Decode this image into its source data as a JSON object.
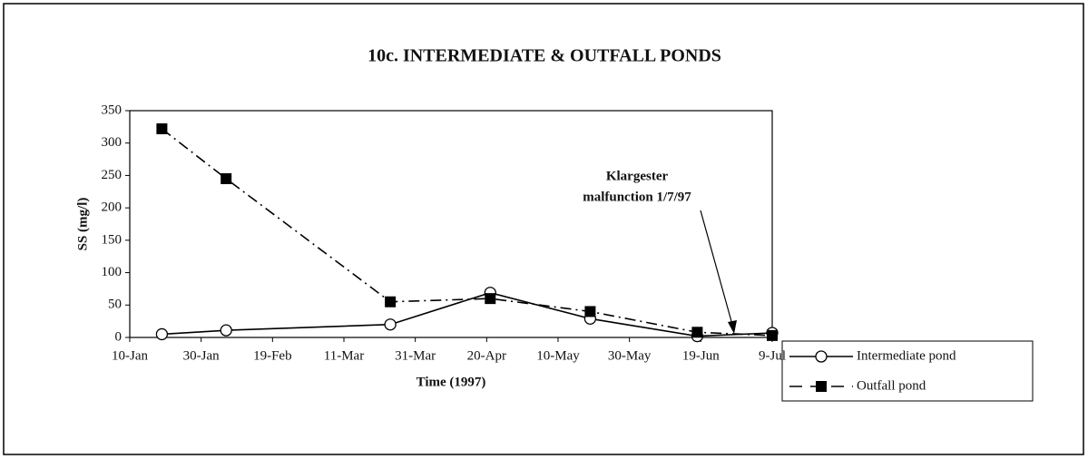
{
  "chart_data": {
    "type": "line",
    "title": "10c. INTERMEDIATE & OUTFALL PONDS",
    "xlabel": "Time (1997)",
    "ylabel": "SS (mg/l)",
    "annotation": [
      "Klargester",
      "malfunction 1/7/97"
    ],
    "xlim": [
      10,
      190
    ],
    "xticks": [
      {
        "value": 10,
        "label": "10-Jan"
      },
      {
        "value": 30,
        "label": "30-Jan"
      },
      {
        "value": 50,
        "label": "19-Feb"
      },
      {
        "value": 70,
        "label": "11-Mar"
      },
      {
        "value": 90,
        "label": "31-Mar"
      },
      {
        "value": 110,
        "label": "20-Apr"
      },
      {
        "value": 130,
        "label": "10-May"
      },
      {
        "value": 150,
        "label": "30-May"
      },
      {
        "value": 170,
        "label": "19-Jun"
      },
      {
        "value": 190,
        "label": "9-Jul"
      }
    ],
    "ylim": [
      0,
      350
    ],
    "yticks": [
      0,
      50,
      100,
      150,
      200,
      250,
      300,
      350
    ],
    "x": [
      19,
      37,
      83,
      111,
      139,
      169,
      190
    ],
    "series": [
      {
        "name": "Intermediate pond",
        "color": "#000000",
        "linestyle": "solid",
        "marker": "open-circle",
        "values": [
          5,
          11,
          20,
          69,
          29,
          2,
          7
        ]
      },
      {
        "name": "Outfall pond",
        "color": "#000000",
        "linestyle": "dash-dot",
        "marker": "filled-square",
        "values": [
          322,
          245,
          55,
          60,
          40,
          8,
          3
        ]
      }
    ]
  }
}
